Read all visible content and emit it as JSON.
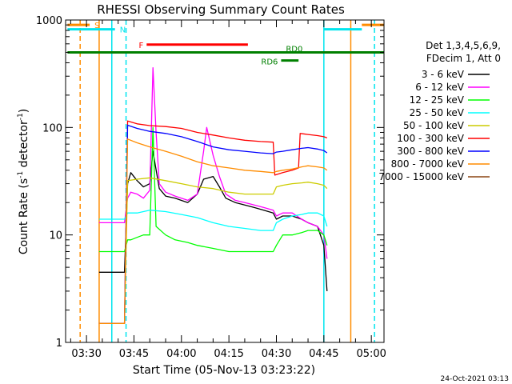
{
  "chart_data": {
    "type": "line",
    "title": "RHESSI Observing Summary Count Rates",
    "xlabel": "Start Time (05-Nov-13 03:23:22)",
    "ylabel": "Count Rate (s",
    "ylabel_sup": "-1",
    "ylabel_tail": " detector",
    "ylabel_sup2": "-1",
    "ylabel_close": ")",
    "x_tick_labels": [
      "03:30",
      "03:45",
      "04:00",
      "04:15",
      "04:30",
      "04:45",
      "05:00"
    ],
    "x_ticks_minutes": [
      30,
      45,
      60,
      75,
      90,
      105,
      120
    ],
    "xlim_minutes": [
      23.4,
      124
    ],
    "y_scale": "log",
    "ylim": [
      1,
      1000
    ],
    "y_tick_labels": [
      "1",
      "10",
      "100",
      "1000"
    ],
    "y_ticks": [
      1,
      10,
      100,
      1000
    ],
    "legend_header": [
      "Det 1,3,4,5,6,9,",
      "FDecim 1, Att 0"
    ],
    "legend_position": "right",
    "timestamp": "24-Oct-2021 03:13",
    "flags": [
      {
        "label": "S",
        "color": "#ff8c00",
        "segments": [
          [
            24,
            31
          ],
          [
            117,
            124
          ]
        ],
        "y": 900
      },
      {
        "label": "N",
        "color": "#00e5ee",
        "segments": [
          [
            24,
            39
          ],
          [
            105,
            117
          ]
        ],
        "y": 820
      },
      {
        "label": "F",
        "color": "#ff0000",
        "segments": [
          [
            49,
            81
          ]
        ],
        "y": 590
      },
      {
        "label": "RD0",
        "color": "#008000",
        "segments": [
          [
            24,
            124
          ]
        ],
        "y": 500
      },
      {
        "label": "RD6",
        "color": "#008000",
        "segments": [
          [
            91.5,
            97
          ]
        ],
        "y": 420
      }
    ],
    "vlines": [
      {
        "x": 28,
        "color": "#ff8c00",
        "style": "dashed"
      },
      {
        "x": 34,
        "color": "#ff8c00",
        "style": "solid"
      },
      {
        "x": 38,
        "color": "#00e5ee",
        "style": "solid"
      },
      {
        "x": 42.5,
        "color": "#00e5ee",
        "style": "dashed"
      },
      {
        "x": 105,
        "color": "#00e5ee",
        "style": "solid"
      },
      {
        "x": 113.5,
        "color": "#ff8c00",
        "style": "solid"
      },
      {
        "x": 121,
        "color": "#00e5ee",
        "style": "dashed"
      }
    ],
    "series": [
      {
        "name": "3 - 6 keV",
        "color": "#000000",
        "x": [
          34,
          34.5,
          38,
          42,
          43,
          44,
          46,
          48,
          50,
          51,
          53,
          55,
          58,
          62,
          65,
          67,
          70,
          72,
          74,
          77,
          80,
          83,
          86,
          89,
          90,
          92,
          95,
          98,
          100,
          103,
          105,
          106
        ],
        "y": [
          4.5,
          4.5,
          4.5,
          4.5,
          30,
          38,
          32,
          28,
          30,
          60,
          27,
          23,
          22,
          20,
          24,
          33,
          35,
          28,
          22,
          20,
          19,
          18,
          17,
          16,
          14,
          15,
          15,
          14,
          13,
          12,
          8,
          3
        ]
      },
      {
        "name": "6 - 12 keV",
        "color": "#ff00ff",
        "x": [
          34,
          34.5,
          38,
          42,
          43,
          44,
          46,
          48,
          50,
          51,
          52,
          53,
          55,
          58,
          62,
          65,
          67,
          68,
          70,
          72,
          74,
          77,
          80,
          83,
          86,
          89,
          90,
          92,
          95,
          98,
          100,
          103,
          105,
          106
        ],
        "y": [
          13,
          13,
          13,
          13,
          22,
          25,
          24,
          22,
          26,
          360,
          90,
          30,
          25,
          23,
          21,
          24,
          60,
          100,
          55,
          35,
          24,
          21,
          20,
          19,
          18,
          17,
          15,
          16,
          16,
          14,
          13,
          12,
          10,
          6
        ]
      },
      {
        "name": "12 - 25 keV",
        "color": "#00ff00",
        "x": [
          34,
          34.5,
          38,
          42,
          43,
          44,
          46,
          48,
          50,
          51,
          52,
          55,
          58,
          62,
          65,
          70,
          75,
          80,
          85,
          89,
          90,
          92,
          95,
          98,
          100,
          103,
          105,
          106
        ],
        "y": [
          7,
          7,
          7,
          7,
          9,
          9,
          9.5,
          10,
          10,
          100,
          12,
          10,
          9,
          8.5,
          8,
          7.5,
          7,
          7,
          7,
          7,
          8,
          10,
          10,
          10.5,
          11,
          11,
          10,
          8
        ]
      },
      {
        "name": "25 - 50 keV",
        "color": "#00ffff",
        "x": [
          34,
          34.5,
          38,
          42,
          43,
          46,
          50,
          55,
          60,
          65,
          70,
          75,
          80,
          85,
          89,
          90,
          92,
          95,
          98,
          100,
          103,
          105,
          106
        ],
        "y": [
          14,
          14,
          14,
          14,
          16,
          16,
          17,
          16.5,
          15.5,
          14.5,
          13,
          12,
          11.5,
          11,
          11,
          13,
          14,
          15,
          15.5,
          16,
          16,
          15,
          12
        ]
      },
      {
        "name": "50 - 100 keV",
        "color": "#cccc00",
        "x": [
          34,
          34.5,
          38,
          42,
          43,
          46,
          50,
          55,
          60,
          65,
          70,
          75,
          80,
          85,
          89,
          90,
          92,
          95,
          98,
          100,
          103,
          105,
          106
        ],
        "y": [
          1.5,
          1.5,
          1.5,
          1.5,
          32,
          33,
          34,
          32,
          30,
          28,
          27,
          25,
          24,
          24,
          24,
          28,
          29,
          30,
          30.5,
          31,
          30,
          29,
          27
        ]
      },
      {
        "name": "100 - 300 keV",
        "color": "#ff0000",
        "x": [
          34,
          34.5,
          38,
          42,
          43,
          46,
          50,
          55,
          60,
          65,
          70,
          75,
          80,
          85,
          89,
          89.5,
          92,
          95,
          97,
          97.5,
          100,
          103,
          105,
          106
        ],
        "y": [
          1.5,
          1.5,
          1.5,
          1.5,
          115,
          108,
          104,
          102,
          98,
          90,
          85,
          80,
          76,
          74,
          73,
          36,
          38,
          40,
          42,
          88,
          86,
          84,
          82,
          80
        ]
      },
      {
        "name": "300 - 800 keV",
        "color": "#0000ff",
        "x": [
          34,
          34.5,
          38,
          42,
          43,
          46,
          50,
          55,
          60,
          65,
          70,
          75,
          80,
          85,
          89,
          90,
          92,
          95,
          98,
          100,
          103,
          105,
          106
        ],
        "y": [
          1.5,
          1.5,
          1.5,
          1.5,
          105,
          98,
          92,
          88,
          82,
          74,
          66,
          62,
          60,
          58,
          57,
          59,
          60,
          62,
          64,
          65,
          63,
          61,
          58
        ]
      },
      {
        "name": "800 - 7000 keV",
        "color": "#ff8c00",
        "x": [
          34,
          34.5,
          38,
          42,
          43,
          46,
          50,
          55,
          60,
          65,
          70,
          75,
          80,
          85,
          89,
          90,
          92,
          95,
          98,
          100,
          103,
          105,
          106
        ],
        "y": [
          1.5,
          1.5,
          1.5,
          1.5,
          78,
          72,
          66,
          60,
          54,
          48,
          44,
          42,
          40,
          39,
          38,
          39,
          40,
          41,
          43,
          44,
          43,
          42,
          40
        ]
      },
      {
        "name": "7000 - 15000 keV",
        "color": "#8b4513",
        "x": [],
        "y": []
      }
    ]
  }
}
